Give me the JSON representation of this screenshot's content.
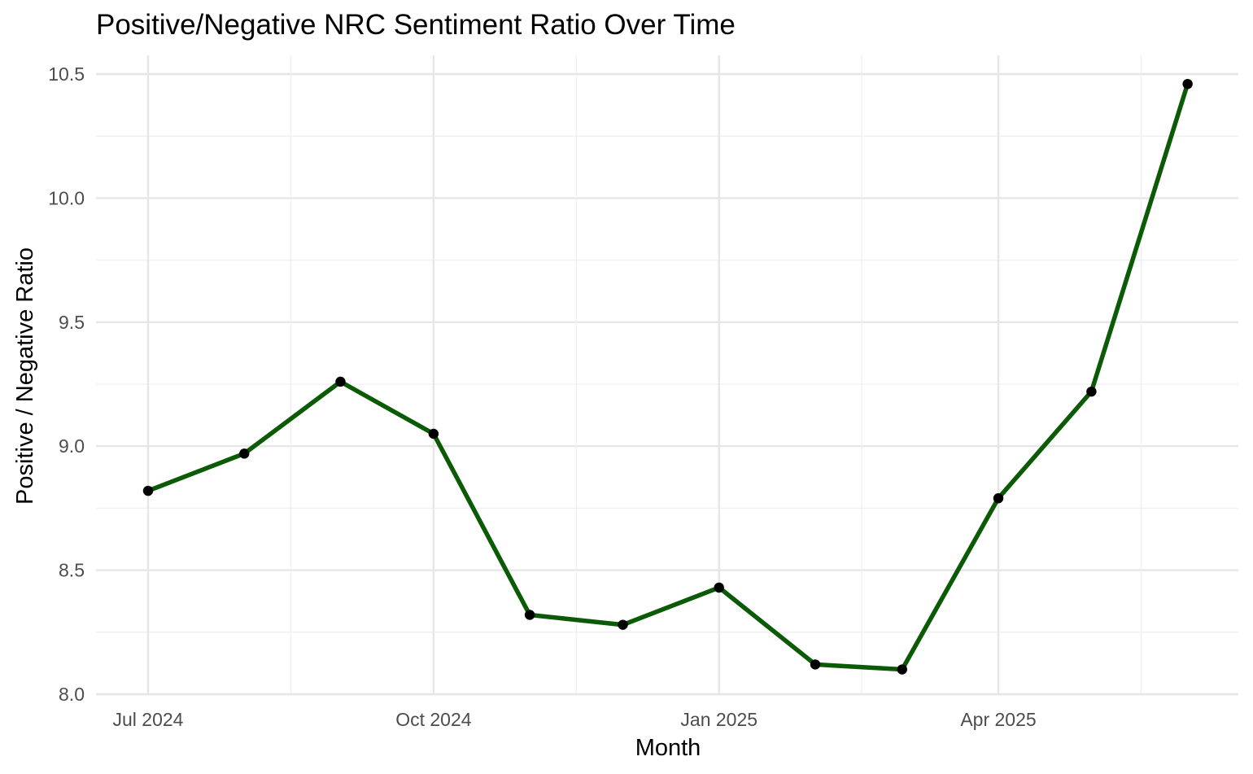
{
  "chart_data": {
    "type": "line",
    "title": "Positive/Negative NRC Sentiment Ratio Over Time",
    "xlabel": "Month",
    "ylabel": "Positive / Negative Ratio",
    "x_tick_labels": [
      "Jul 2024",
      "Oct 2024",
      "Jan 2025",
      "Apr 2025"
    ],
    "y_tick_labels": [
      "8.0",
      "8.5",
      "9.0",
      "9.5",
      "10.0",
      "10.5"
    ],
    "ylim": [
      8.0,
      10.5
    ],
    "grid": true,
    "line_color": "#0b5a05",
    "point_color": "#000000",
    "series": [
      {
        "x": [
          "2024-07-01",
          "2024-08-01",
          "2024-09-01",
          "2024-10-01",
          "2024-11-01",
          "2024-12-01",
          "2025-01-01",
          "2025-02-01",
          "2025-03-01",
          "2025-04-01",
          "2025-05-01",
          "2025-06-01"
        ],
        "values": [
          8.82,
          8.97,
          9.26,
          9.05,
          8.32,
          8.28,
          8.43,
          8.12,
          8.1,
          8.79,
          9.22,
          10.46
        ]
      }
    ]
  }
}
